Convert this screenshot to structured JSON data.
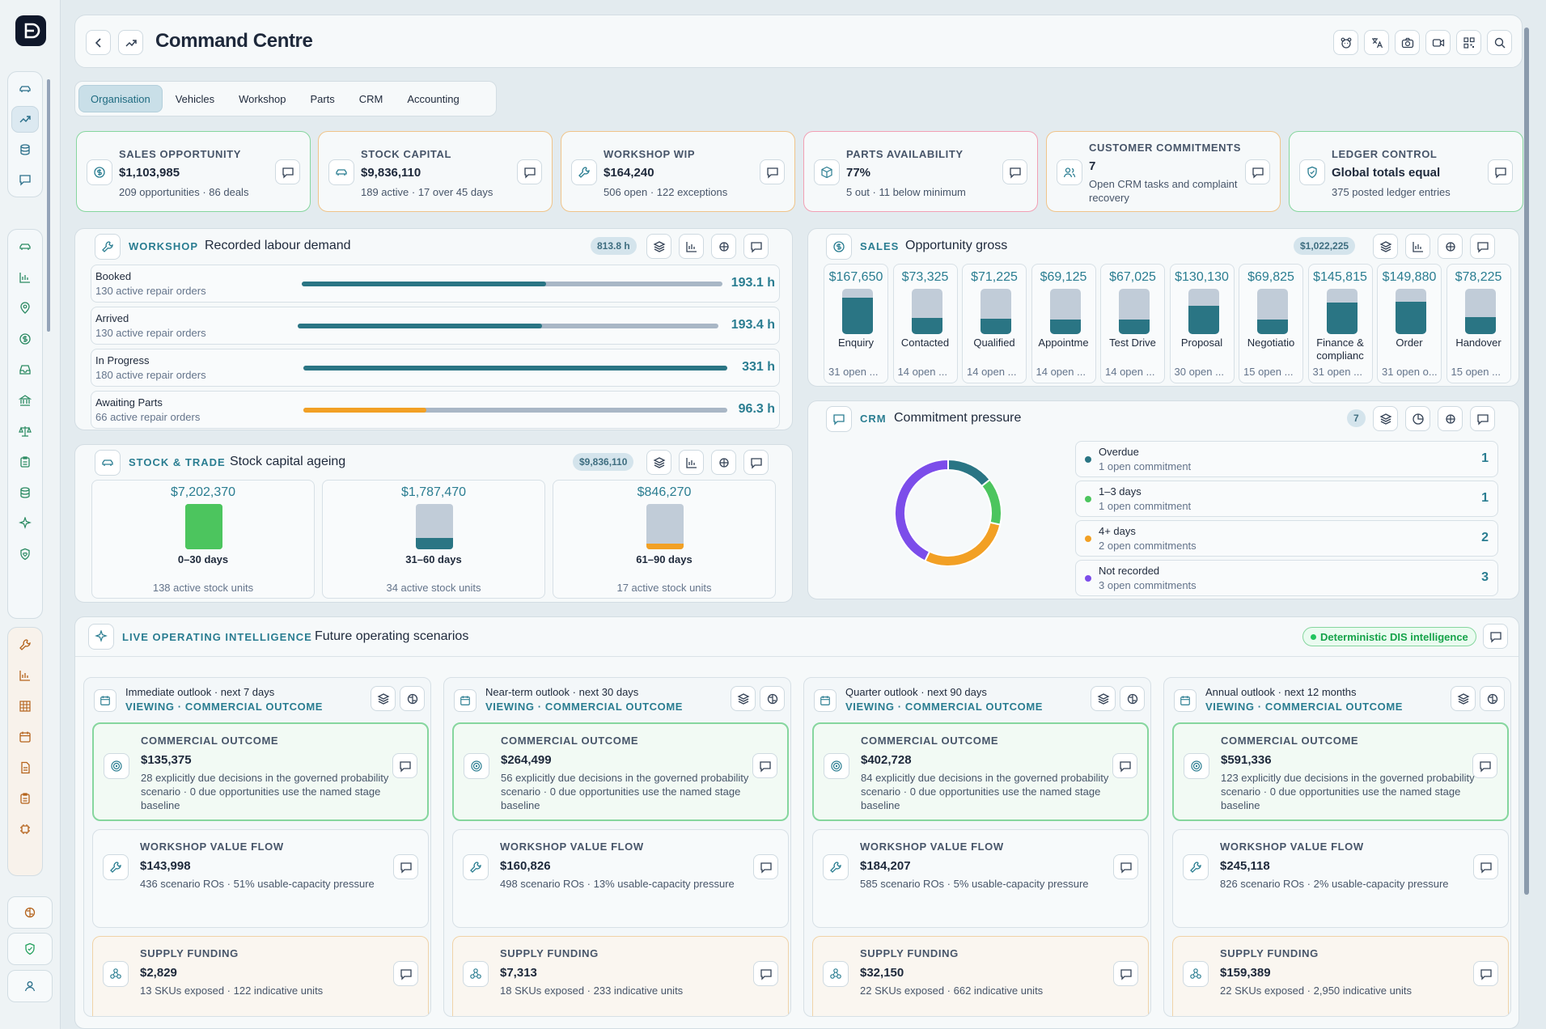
{
  "header": {
    "title": "Command Centre",
    "icons": [
      "back-icon",
      "trend-icon",
      "bear-icon",
      "translate-icon",
      "camera-icon",
      "video-icon",
      "qr-icon",
      "search-icon"
    ]
  },
  "tabs": [
    "Organisation",
    "Vehicles",
    "Workshop",
    "Parts",
    "CRM",
    "Accounting"
  ],
  "kpis": [
    {
      "label": "SALES OPPORTUNITY",
      "value": "$1,103,985",
      "sub": "209 opportunities · 86 deals",
      "icon": "dollar-icon",
      "accent": "#86d69e"
    },
    {
      "label": "STOCK CAPITAL",
      "value": "$9,836,110",
      "sub": "189 active · 17 over 45 days",
      "icon": "car-icon",
      "accent": "#f0c48a"
    },
    {
      "label": "WORKSHOP WIP",
      "value": "$164,240",
      "sub": "506 open · 122 exceptions",
      "icon": "wrench-icon",
      "accent": "#f0c48a"
    },
    {
      "label": "PARTS AVAILABILITY",
      "value": "77%",
      "sub": "5 out · 11 below minimum",
      "icon": "box-icon",
      "accent": "#f2a0b4"
    },
    {
      "label": "CUSTOMER COMMITMENTS",
      "value": "7",
      "sub": "Open CRM tasks and complaint recovery",
      "icon": "users-icon",
      "accent": "#f0c48a"
    },
    {
      "label": "LEDGER CONTROL",
      "value": "Global totals equal",
      "sub": "375 posted ledger entries",
      "icon": "shield-icon",
      "accent": "#86d69e"
    }
  ],
  "workshop": {
    "tag": "WORKSHOP",
    "title": "Recorded labour demand",
    "badge": "813.8 h",
    "rows": [
      {
        "name": "Booked",
        "sub": "130 active repair orders",
        "value": "193.1 h",
        "fill": 0.58,
        "color": "#2a7584"
      },
      {
        "name": "Arrived",
        "sub": "130 active repair orders",
        "value": "193.4 h",
        "fill": 0.58,
        "color": "#2a7584"
      },
      {
        "name": "In Progress",
        "sub": "180 active repair orders",
        "value": "331 h",
        "fill": 1.0,
        "color": "#2a7584"
      },
      {
        "name": "Awaiting Parts",
        "sub": "66 active repair orders",
        "value": "96.3 h",
        "fill": 0.29,
        "color": "#f2a024"
      }
    ]
  },
  "sales": {
    "tag": "SALES",
    "title": "Opportunity gross",
    "badge": "$1,022,225",
    "stages": [
      {
        "value": "$167,650",
        "name": "Enquiry",
        "open": "31 open ...",
        "fill": 0.8
      },
      {
        "value": "$73,325",
        "name": "Contacted",
        "open": "14 open ...",
        "fill": 0.35
      },
      {
        "value": "$71,225",
        "name": "Qualified",
        "open": "14 open ...",
        "fill": 0.34
      },
      {
        "value": "$69,125",
        "name": "Appointme",
        "open": "14 open ...",
        "fill": 0.33
      },
      {
        "value": "$67,025",
        "name": "Test Drive",
        "open": "14 open ...",
        "fill": 0.32
      },
      {
        "value": "$130,130",
        "name": "Proposal",
        "open": "30 open ...",
        "fill": 0.62
      },
      {
        "value": "$69,825",
        "name": "Negotiatio",
        "open": "15 open ...",
        "fill": 0.33
      },
      {
        "value": "$145,815",
        "name": "Finance & complianc",
        "open": "31 open ...",
        "fill": 0.7
      },
      {
        "value": "$149,880",
        "name": "Order",
        "open": "31 open o...",
        "fill": 0.72
      },
      {
        "value": "$78,225",
        "name": "Handover",
        "open": "15 open ...",
        "fill": 0.38
      }
    ]
  },
  "stock": {
    "tag": "STOCK & TRADE",
    "title": "Stock capital ageing",
    "badge": "$9,836,110",
    "buckets": [
      {
        "value": "$7,202,370",
        "name": "0–30 days",
        "sub": "138 active stock units",
        "fill": 1.0,
        "color": "#4cc55e"
      },
      {
        "value": "$1,787,470",
        "name": "31–60 days",
        "sub": "34 active stock units",
        "fill": 0.25,
        "color": "#2a7584"
      },
      {
        "value": "$846,270",
        "name": "61–90 days",
        "sub": "17 active stock units",
        "fill": 0.12,
        "color": "#f2a024"
      }
    ]
  },
  "crm": {
    "tag": "CRM",
    "title": "Commitment pressure",
    "badge": "7",
    "items": [
      {
        "name": "Overdue",
        "sub": "1 open commitment",
        "count": "1",
        "color": "#2a7584",
        "value": 1
      },
      {
        "name": "1–3 days",
        "sub": "1 open commitment",
        "count": "1",
        "color": "#4cc55e",
        "value": 1
      },
      {
        "name": "4+ days",
        "sub": "2 open commitments",
        "count": "2",
        "color": "#f2a024",
        "value": 2
      },
      {
        "name": "Not recorded",
        "sub": "3 open commitments",
        "count": "3",
        "color": "#7c4dea",
        "value": 3
      }
    ]
  },
  "intel": {
    "tag": "LIVE OPERATING INTELLIGENCE",
    "title": "Future operating scenarios",
    "badge": "Deterministic DIS intelligence",
    "columns": [
      {
        "title": "Immediate outlook · next 7 days",
        "viewing": "VIEWING · COMMERCIAL OUTCOME",
        "cards": [
          {
            "label": "COMMERCIAL OUTCOME",
            "value": "$135,375",
            "sub": "28 explicitly due decisions in the governed probability scenario · 0 due opportunities use the named stage baseline"
          },
          {
            "label": "WORKSHOP VALUE FLOW",
            "value": "$143,998",
            "sub": "436 scenario ROs · 51% usable-capacity pressure"
          },
          {
            "label": "SUPPLY FUNDING",
            "value": "$2,829",
            "sub": "13 SKUs exposed · 122 indicative units"
          }
        ]
      },
      {
        "title": "Near-term outlook · next 30 days",
        "viewing": "VIEWING · COMMERCIAL OUTCOME",
        "cards": [
          {
            "label": "COMMERCIAL OUTCOME",
            "value": "$264,499",
            "sub": "56 explicitly due decisions in the governed probability scenario · 0 due opportunities use the named stage baseline"
          },
          {
            "label": "WORKSHOP VALUE FLOW",
            "value": "$160,826",
            "sub": "498 scenario ROs · 13% usable-capacity pressure"
          },
          {
            "label": "SUPPLY FUNDING",
            "value": "$7,313",
            "sub": "18 SKUs exposed · 233 indicative units"
          }
        ]
      },
      {
        "title": "Quarter outlook · next 90 days",
        "viewing": "VIEWING · COMMERCIAL OUTCOME",
        "cards": [
          {
            "label": "COMMERCIAL OUTCOME",
            "value": "$402,728",
            "sub": "84 explicitly due decisions in the governed probability scenario · 0 due opportunities use the named stage baseline"
          },
          {
            "label": "WORKSHOP VALUE FLOW",
            "value": "$184,207",
            "sub": "585 scenario ROs · 5% usable-capacity pressure"
          },
          {
            "label": "SUPPLY FUNDING",
            "value": "$32,150",
            "sub": "22 SKUs exposed · 662 indicative units"
          }
        ]
      },
      {
        "title": "Annual outlook · next 12 months",
        "viewing": "VIEWING · COMMERCIAL OUTCOME",
        "cards": [
          {
            "label": "COMMERCIAL OUTCOME",
            "value": "$591,336",
            "sub": "123 explicitly due decisions in the governed probability scenario · 0 due opportunities use the named stage baseline"
          },
          {
            "label": "WORKSHOP VALUE FLOW",
            "value": "$245,118",
            "sub": "826 scenario ROs · 2% usable-capacity pressure"
          },
          {
            "label": "SUPPLY FUNDING",
            "value": "$159,389",
            "sub": "22 SKUs exposed · 2,950 indicative units"
          }
        ]
      }
    ]
  },
  "sidebar": {
    "group1": [
      "car-icon",
      "trend-icon",
      "database-icon",
      "message-icon"
    ],
    "group2": [
      "car-icon",
      "bar-chart-icon",
      "map-pin-icon",
      "dollar-icon",
      "inbox-icon",
      "bank-icon",
      "scales-icon",
      "clipboard-icon",
      "database-icon",
      "sparkle-icon",
      "shield-heart-icon"
    ],
    "group3": [
      "wrench-icon",
      "bar-chart-icon",
      "grid-icon",
      "calendar-icon",
      "document-icon",
      "clipboard-icon",
      "chip-icon"
    ],
    "footer": [
      "brain-icon",
      "shield-icon",
      "user-icon"
    ]
  }
}
